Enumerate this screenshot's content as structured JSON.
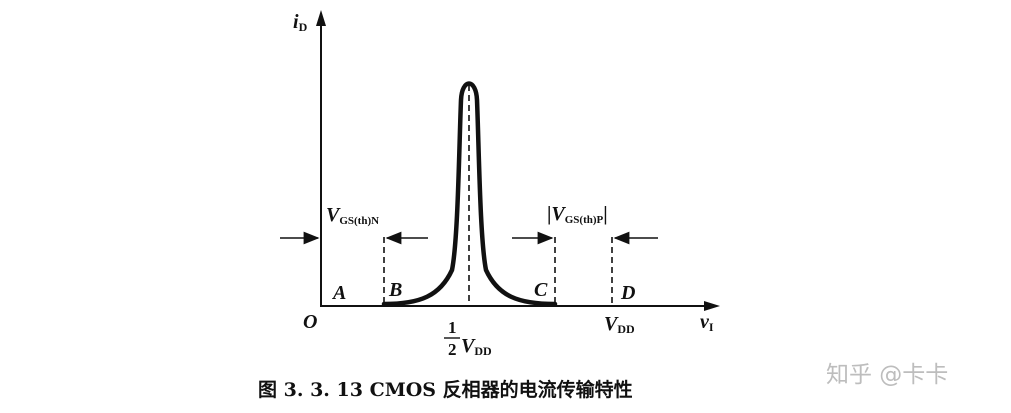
{
  "diagram": {
    "y_axis_label": "i",
    "y_axis_sub": "D",
    "x_axis_label": "v",
    "x_axis_sub": "I",
    "origin": "O",
    "region_points": [
      "A",
      "B",
      "C",
      "D"
    ],
    "vgs_n_main": "V",
    "vgs_n_sub": "GS(th)N",
    "vgs_p_bar": "|",
    "vgs_p_main": "V",
    "vgs_p_sub": "GS(th)P",
    "vgs_p_bar_end": "|",
    "half_num": "1",
    "half_den": "2",
    "half_v": "V",
    "half_v_sub": "DD",
    "vdd": "V",
    "vdd_sub": "DD"
  },
  "caption": "图 3. 3. 13   CMOS 反相器的电流传输特性",
  "watermark": "知乎 @卡卡"
}
